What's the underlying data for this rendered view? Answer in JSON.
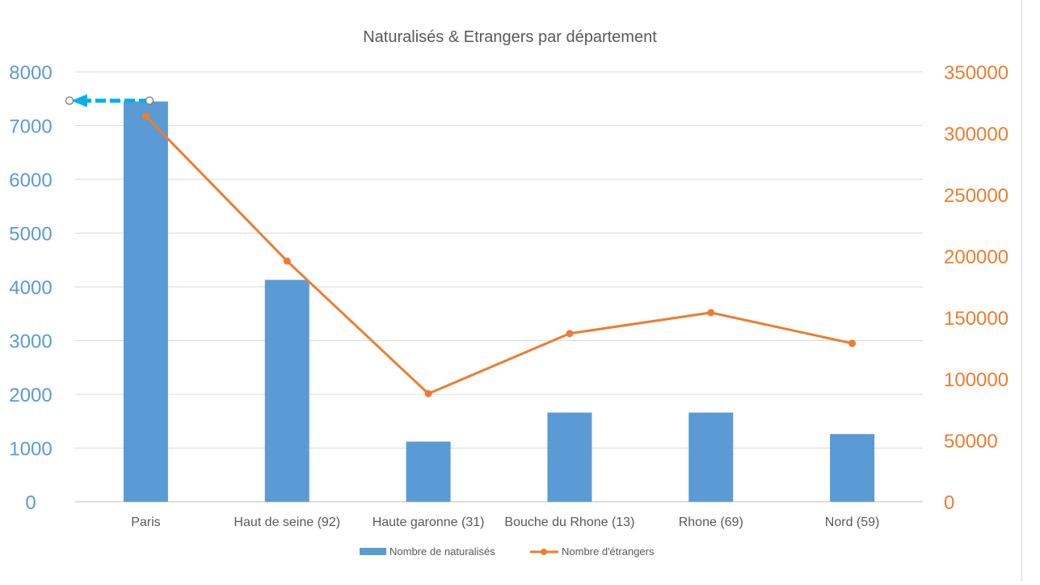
{
  "chart_data": {
    "type": "bar+line",
    "title": "Naturalisés & Etrangers par département",
    "categories": [
      "Paris",
      "Haut de seine (92)",
      "Haute garonne  (31)",
      "Bouche du Rhone (13)",
      "Rhone (69)",
      "Nord (59)"
    ],
    "series": [
      {
        "name": "Nombre de naturalisés",
        "type": "bar",
        "axis": "left",
        "color": "#5b9bd5",
        "values": [
          7450,
          4130,
          1120,
          1660,
          1660,
          1260
        ]
      },
      {
        "name": "Nombre d'étrangers",
        "type": "line",
        "axis": "right",
        "color": "#ed7d31",
        "values": [
          314000,
          196000,
          88000,
          137000,
          154000,
          129000
        ]
      }
    ],
    "y_left": {
      "ylim": [
        0,
        8000
      ],
      "ticks": [
        "0",
        "1000",
        "2000",
        "3000",
        "4000",
        "5000",
        "6000",
        "7000",
        "8000"
      ],
      "color": "#5b9bd5"
    },
    "y_right": {
      "ylim": [
        0,
        350000
      ],
      "ticks": [
        "0",
        "50000",
        "100000",
        "150000",
        "200000",
        "250000",
        "300000",
        "350000"
      ],
      "color": "#ed7d31"
    },
    "grid": true,
    "legend_position": "bottom",
    "annotation": {
      "type": "dashed-arrow",
      "color": "#00b0f0",
      "points_to": "left-axis",
      "at_value": 7450
    }
  }
}
